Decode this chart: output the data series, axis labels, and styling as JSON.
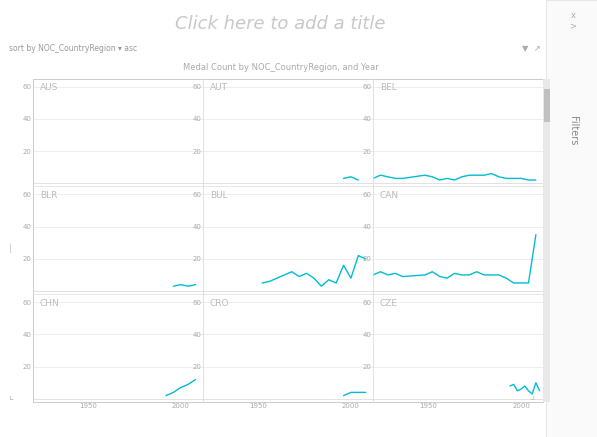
{
  "title": "Click here to add a title",
  "subtitle": "Medal Count by NOC_CountryRegion, and Year",
  "sort_label": "sort by NOC_CountryRegion ▾ asc",
  "bg_color": "#ffffff",
  "panel_bg": "#ffffff",
  "line_color": "#00bcd4",
  "grid_color": "#e8e8e8",
  "label_color": "#aaaaaa",
  "title_color": "#c8c8c8",
  "countries": [
    "AUS",
    "AUT",
    "BEL",
    "BLR",
    "BUL",
    "CAN",
    "CHN",
    "CRO",
    "CZE"
  ],
  "ylim": [
    0,
    60
  ],
  "yticks": [
    0,
    20,
    40,
    60
  ],
  "xlim": [
    1920,
    2012
  ],
  "xticks": [
    1950,
    2000
  ],
  "series": {
    "AUS": {
      "years": [],
      "values": []
    },
    "AUT": {
      "years": [
        1996,
        2000,
        2004
      ],
      "values": [
        3,
        4,
        2
      ]
    },
    "BEL": {
      "years": [
        1920,
        1924,
        1928,
        1932,
        1936,
        1948,
        1952,
        1956,
        1960,
        1964,
        1968,
        1972,
        1976,
        1980,
        1984,
        1988,
        1992,
        1996,
        2000,
        2004,
        2008
      ],
      "values": [
        3,
        5,
        4,
        3,
        3,
        5,
        4,
        2,
        3,
        2,
        4,
        5,
        5,
        5,
        6,
        4,
        3,
        3,
        3,
        2,
        2
      ]
    },
    "BLR": {
      "years": [
        1996,
        2000,
        2004,
        2008
      ],
      "values": [
        3,
        4,
        3,
        4
      ]
    },
    "BUL": {
      "years": [
        1952,
        1956,
        1960,
        1964,
        1968,
        1972,
        1976,
        1980,
        1984,
        1988,
        1992,
        1996,
        2000,
        2004,
        2008
      ],
      "values": [
        5,
        6,
        8,
        10,
        12,
        9,
        11,
        8,
        3,
        7,
        5,
        16,
        8,
        22,
        20
      ]
    },
    "CAN": {
      "years": [
        1920,
        1924,
        1928,
        1932,
        1936,
        1948,
        1952,
        1956,
        1960,
        1964,
        1968,
        1972,
        1976,
        1980,
        1984,
        1988,
        1992,
        1996,
        2000,
        2004,
        2008
      ],
      "values": [
        10,
        12,
        10,
        11,
        9,
        10,
        12,
        9,
        8,
        11,
        10,
        10,
        12,
        10,
        10,
        10,
        8,
        5,
        5,
        5,
        35
      ]
    },
    "CHN": {
      "years": [
        1992,
        1996,
        2000,
        2004,
        2008
      ],
      "values": [
        2,
        4,
        7,
        9,
        12
      ]
    },
    "CRO": {
      "years": [
        1996,
        2000,
        2004,
        2008
      ],
      "values": [
        2,
        4,
        4,
        4
      ]
    },
    "CZE": {
      "years": [
        1994,
        1996,
        1998,
        2000,
        2002,
        2004,
        2006,
        2008,
        2010
      ],
      "values": [
        8,
        9,
        5,
        6,
        8,
        5,
        3,
        10,
        5
      ]
    }
  }
}
